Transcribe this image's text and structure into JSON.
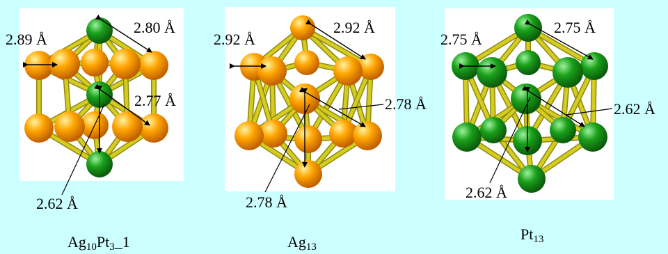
{
  "colors": {
    "background": "#ccffff",
    "silver_atom": "#ffa500",
    "platinum_atom": "#1aa01a",
    "bond": "#d4cc1e",
    "panel": "#ffffff"
  },
  "clusters": [
    {
      "id": "ag10pt3",
      "caption": {
        "main": "Ag",
        "sub1": "10",
        "mid": "Pt",
        "sub2": "3",
        "tail": "_1"
      },
      "labels": [
        "2.89 Å",
        "2.80 Å",
        "2.77 Å",
        "2.62 Å"
      ]
    },
    {
      "id": "ag13",
      "caption": {
        "main": "Ag",
        "sub1": "13"
      },
      "labels": [
        "2.92 Å",
        "2.92 Å",
        "2.78 Å",
        "2.78 Å"
      ]
    },
    {
      "id": "pt13",
      "caption": {
        "main": "Pt",
        "sub1": "13"
      },
      "labels": [
        "2.75 Å",
        "2.75 Å",
        "2.62 Å",
        "2.62 Å"
      ]
    }
  ]
}
